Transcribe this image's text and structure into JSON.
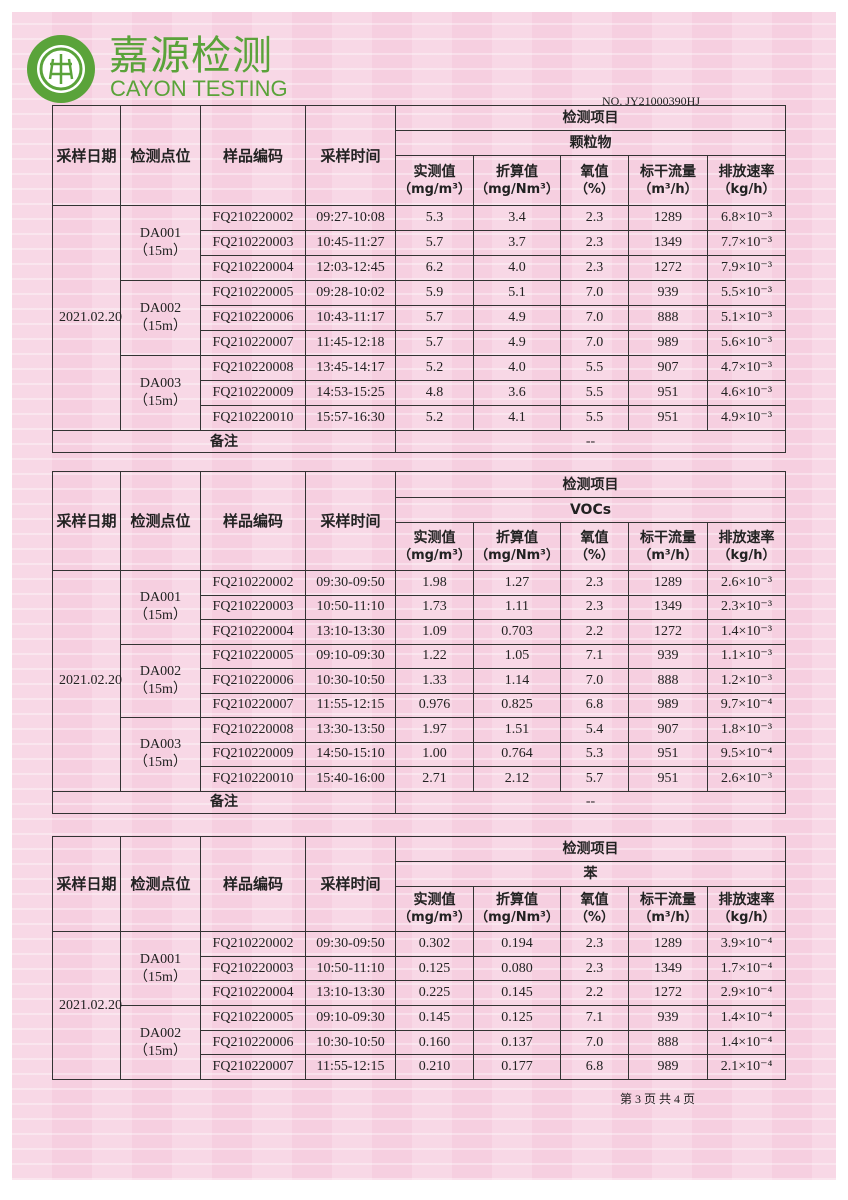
{
  "header": {
    "brand_cn": "嘉源检测",
    "brand_en": "CAYON TESTING",
    "seal_text": "CAYON TESTING CO.,LTD",
    "report_no": "NO. JY21000390HJ",
    "brand_color": "#5aa33a",
    "background_color": "#f6cfe0"
  },
  "columns": {
    "date": "采样日期",
    "point": "检测点位",
    "sample_id": "样品编码",
    "time": "采样时间",
    "items": "检测项目",
    "measured": "实测值",
    "measured_unit": "（mg/m³）",
    "converted": "折算值",
    "converted_unit": "（mg/Nm³）",
    "oxygen": "氧值",
    "oxygen_unit": "（%）",
    "flow": "标干流量",
    "flow_unit": "（m³/h）",
    "rate": "排放速率",
    "rate_unit": "（kg/h）",
    "remark": "备注"
  },
  "tables": [
    {
      "pollutant": "颗粒物",
      "date": "2021.02.20",
      "remark": "--",
      "groups": [
        {
          "point": "DA001（15m）",
          "rows": [
            [
              "FQ210220002",
              "09:27-10:08",
              "5.3",
              "3.4",
              "2.3",
              "1289",
              "6.8×10⁻³"
            ],
            [
              "FQ210220003",
              "10:45-11:27",
              "5.7",
              "3.7",
              "2.3",
              "1349",
              "7.7×10⁻³"
            ],
            [
              "FQ210220004",
              "12:03-12:45",
              "6.2",
              "4.0",
              "2.3",
              "1272",
              "7.9×10⁻³"
            ]
          ]
        },
        {
          "point": "DA002（15m）",
          "rows": [
            [
              "FQ210220005",
              "09:28-10:02",
              "5.9",
              "5.1",
              "7.0",
              "939",
              "5.5×10⁻³"
            ],
            [
              "FQ210220006",
              "10:43-11:17",
              "5.7",
              "4.9",
              "7.0",
              "888",
              "5.1×10⁻³"
            ],
            [
              "FQ210220007",
              "11:45-12:18",
              "5.7",
              "4.9",
              "7.0",
              "989",
              "5.6×10⁻³"
            ]
          ]
        },
        {
          "point": "DA003（15m）",
          "rows": [
            [
              "FQ210220008",
              "13:45-14:17",
              "5.2",
              "4.0",
              "5.5",
              "907",
              "4.7×10⁻³"
            ],
            [
              "FQ210220009",
              "14:53-15:25",
              "4.8",
              "3.6",
              "5.5",
              "951",
              "4.6×10⁻³"
            ],
            [
              "FQ210220010",
              "15:57-16:30",
              "5.2",
              "4.1",
              "5.5",
              "951",
              "4.9×10⁻³"
            ]
          ]
        }
      ]
    },
    {
      "pollutant": "VOCs",
      "date": "2021.02.20",
      "remark": "--",
      "groups": [
        {
          "point": "DA001（15m）",
          "rows": [
            [
              "FQ210220002",
              "09:30-09:50",
              "1.98",
              "1.27",
              "2.3",
              "1289",
              "2.6×10⁻³"
            ],
            [
              "FQ210220003",
              "10:50-11:10",
              "1.73",
              "1.11",
              "2.3",
              "1349",
              "2.3×10⁻³"
            ],
            [
              "FQ210220004",
              "13:10-13:30",
              "1.09",
              "0.703",
              "2.2",
              "1272",
              "1.4×10⁻³"
            ]
          ]
        },
        {
          "point": "DA002（15m）",
          "rows": [
            [
              "FQ210220005",
              "09:10-09:30",
              "1.22",
              "1.05",
              "7.1",
              "939",
              "1.1×10⁻³"
            ],
            [
              "FQ210220006",
              "10:30-10:50",
              "1.33",
              "1.14",
              "7.0",
              "888",
              "1.2×10⁻³"
            ],
            [
              "FQ210220007",
              "11:55-12:15",
              "0.976",
              "0.825",
              "6.8",
              "989",
              "9.7×10⁻⁴"
            ]
          ]
        },
        {
          "point": "DA003（15m）",
          "rows": [
            [
              "FQ210220008",
              "13:30-13:50",
              "1.97",
              "1.51",
              "5.4",
              "907",
              "1.8×10⁻³"
            ],
            [
              "FQ210220009",
              "14:50-15:10",
              "1.00",
              "0.764",
              "5.3",
              "951",
              "9.5×10⁻⁴"
            ],
            [
              "FQ210220010",
              "15:40-16:00",
              "2.71",
              "2.12",
              "5.7",
              "951",
              "2.6×10⁻³"
            ]
          ]
        }
      ]
    },
    {
      "pollutant": "苯",
      "date": "2021.02.20",
      "groups": [
        {
          "point": "DA001（15m）",
          "rows": [
            [
              "FQ210220002",
              "09:30-09:50",
              "0.302",
              "0.194",
              "2.3",
              "1289",
              "3.9×10⁻⁴"
            ],
            [
              "FQ210220003",
              "10:50-11:10",
              "0.125",
              "0.080",
              "2.3",
              "1349",
              "1.7×10⁻⁴"
            ],
            [
              "FQ210220004",
              "13:10-13:30",
              "0.225",
              "0.145",
              "2.2",
              "1272",
              "2.9×10⁻⁴"
            ]
          ]
        },
        {
          "point": "DA002（15m）",
          "rows": [
            [
              "FQ210220005",
              "09:10-09:30",
              "0.145",
              "0.125",
              "7.1",
              "939",
              "1.4×10⁻⁴"
            ],
            [
              "FQ210220006",
              "10:30-10:50",
              "0.160",
              "0.137",
              "7.0",
              "888",
              "1.4×10⁻⁴"
            ],
            [
              "FQ210220007",
              "11:55-12:15",
              "0.210",
              "0.177",
              "6.8",
              "989",
              "2.1×10⁻⁴"
            ]
          ]
        }
      ]
    }
  ],
  "footer": {
    "page": "第 3 页 共 4 页"
  }
}
